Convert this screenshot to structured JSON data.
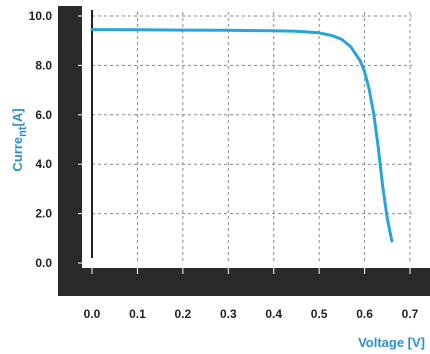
{
  "chart_data": {
    "type": "line",
    "title": "",
    "xlabel": "Voltage [V]",
    "ylabel_main": "Curre",
    "ylabel_sub": "nt",
    "ylabel_unit": "[A]",
    "xlim": [
      0.0,
      0.7
    ],
    "ylim": [
      0.0,
      10.0
    ],
    "x_ticks": [
      "0.0",
      "0.1",
      "0.2",
      "0.3",
      "0.4",
      "0.5",
      "0.6",
      "0.7"
    ],
    "y_ticks": [
      "0.0",
      "2.0",
      "4.0",
      "6.0",
      "8.0",
      "10.0"
    ],
    "grid": true,
    "series": [
      {
        "x": [
          0.0,
          0.1,
          0.2,
          0.3,
          0.4,
          0.45,
          0.5,
          0.53,
          0.55,
          0.57,
          0.59,
          0.6,
          0.61,
          0.62,
          0.63,
          0.64,
          0.65,
          0.66
        ],
        "y": [
          9.45,
          9.44,
          9.43,
          9.42,
          9.4,
          9.38,
          9.32,
          9.2,
          9.05,
          8.75,
          8.2,
          7.75,
          7.05,
          6.05,
          4.7,
          3.1,
          1.8,
          0.9
        ],
        "color": "#2aa3d8"
      }
    ],
    "colors": {
      "axis_title": "#2b8fd0",
      "frame": "#2a2a2a",
      "grid": "#8a8a8a"
    }
  }
}
